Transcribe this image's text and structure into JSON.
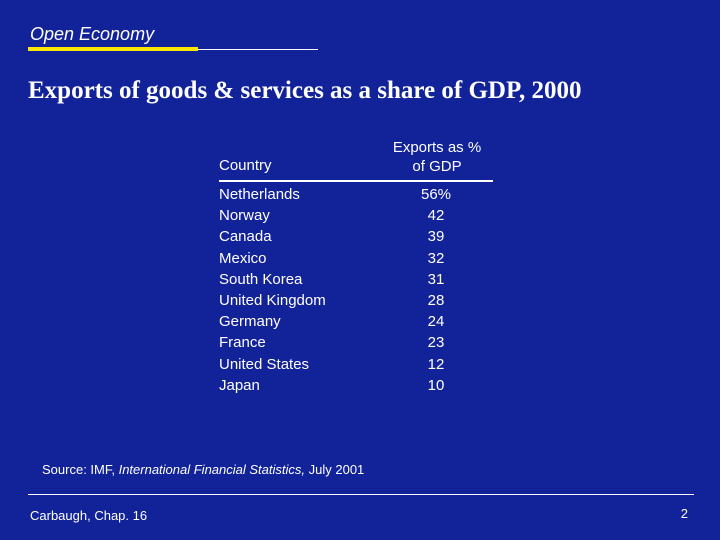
{
  "header": {
    "section": "Open Economy",
    "title": "Exports of goods & services as a share of GDP,  2000"
  },
  "table": {
    "col_country": "Country",
    "col_exports_line1": "Exports as %",
    "col_exports_line2": "of GDP",
    "rows": [
      {
        "country": "Netherlands",
        "value": "56%"
      },
      {
        "country": "Norway",
        "value": "42"
      },
      {
        "country": "Canada",
        "value": "39"
      },
      {
        "country": "Mexico",
        "value": "32"
      },
      {
        "country": "South Korea",
        "value": "31"
      },
      {
        "country": "United Kingdom",
        "value": "28"
      },
      {
        "country": "Germany",
        "value": "24"
      },
      {
        "country": "France",
        "value": "23"
      },
      {
        "country": "United States",
        "value": "12"
      },
      {
        "country": "Japan",
        "value": "10"
      }
    ]
  },
  "source": {
    "prefix": "Source: IMF, ",
    "publication": "International Financial Statistics,",
    "suffix": " July 2001"
  },
  "footer": {
    "left": "Carbaugh, Chap. 16",
    "page": "2"
  },
  "colors": {
    "background": "#12239a",
    "accent": "#ffe600",
    "text": "#ffffff"
  }
}
